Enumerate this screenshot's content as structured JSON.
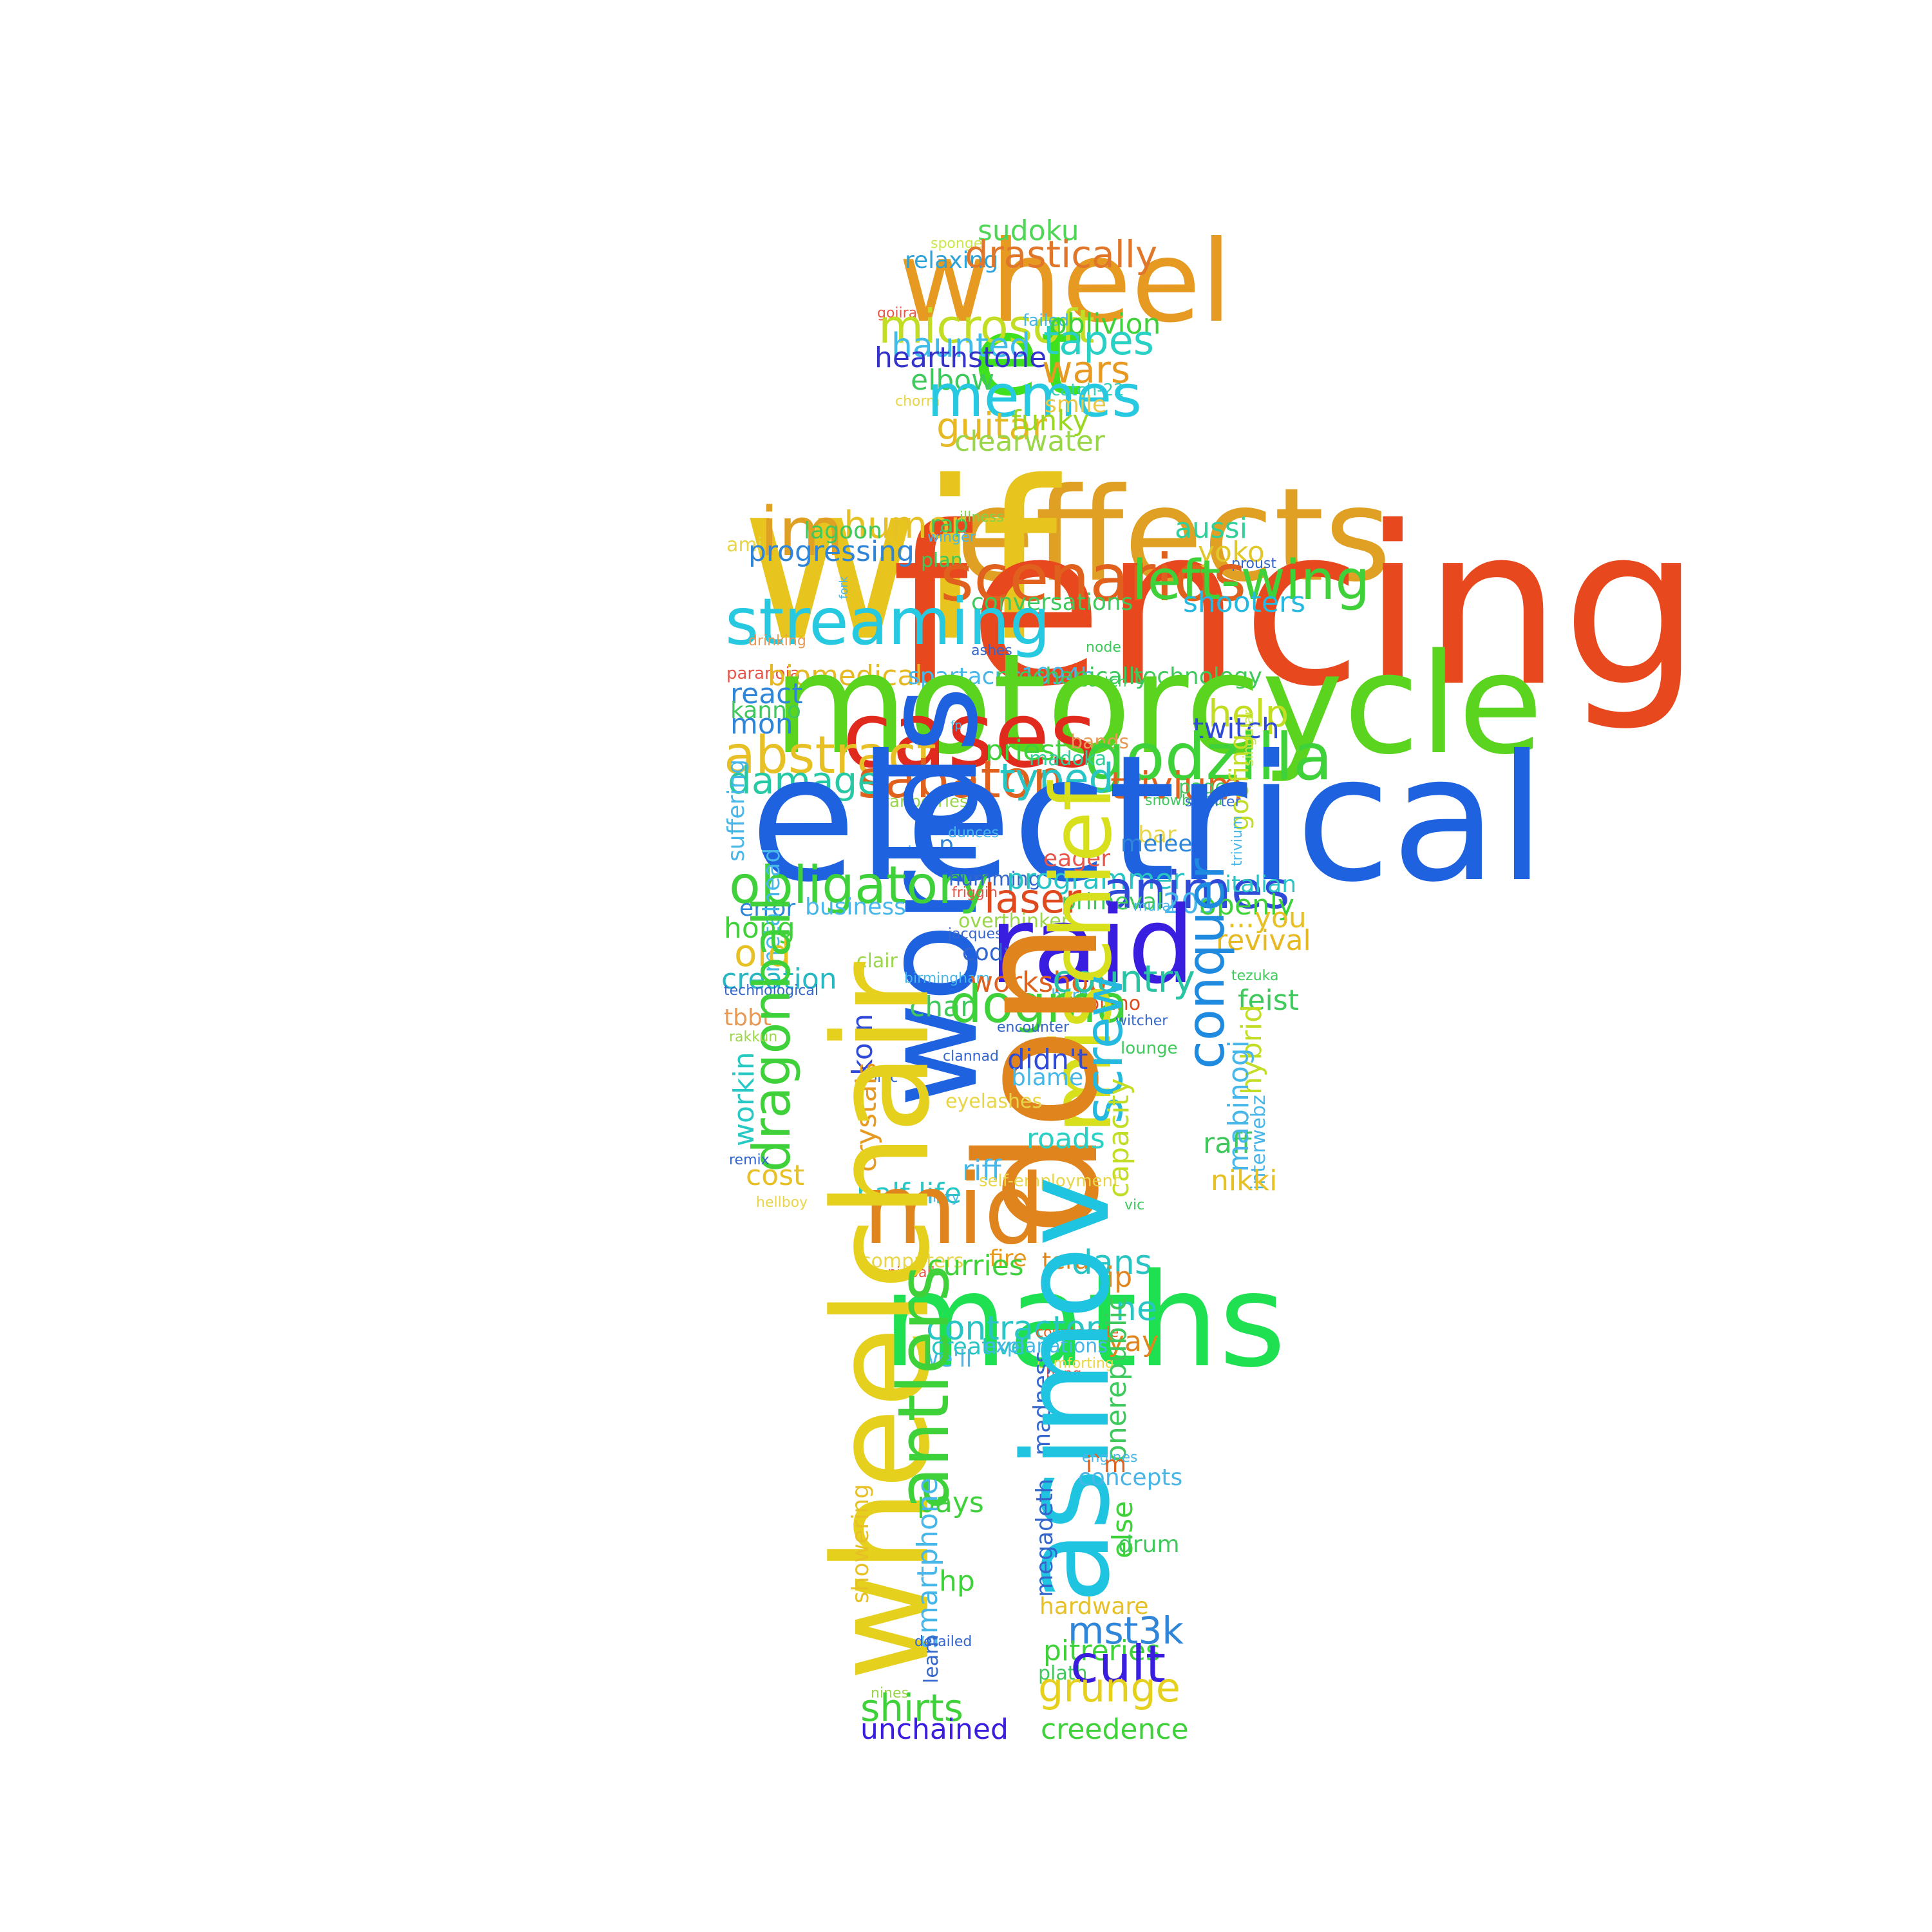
{
  "words": [
    {
      "text": "wheel",
      "color": "#e69a21"
    },
    {
      "text": "et",
      "color": "#3fe01d"
    },
    {
      "text": "sudoku",
      "color": "#4fd656"
    },
    {
      "text": "sponge",
      "color": "#c9e84a"
    },
    {
      "text": "relaxing",
      "color": "#2fa3d8"
    },
    {
      "text": "drastically",
      "color": "#e0762a"
    },
    {
      "text": "gojira",
      "color": "#e8554a"
    },
    {
      "text": "microsoft",
      "color": "#c3dd24"
    },
    {
      "text": "failed",
      "color": "#47b6e8"
    },
    {
      "text": "oblivion",
      "color": "#3fd13a"
    },
    {
      "text": "haunted",
      "color": "#3fbde8"
    },
    {
      "text": "tapes",
      "color": "#29d1c4"
    },
    {
      "text": "hearthstone",
      "color": "#3333cc"
    },
    {
      "text": "wars",
      "color": "#e69a21"
    },
    {
      "text": "elbow",
      "color": "#3ec95c"
    },
    {
      "text": "catch-22",
      "color": "#33cfb8"
    },
    {
      "text": "chorm",
      "color": "#e8d54a"
    },
    {
      "text": "memes",
      "color": "#26c9e0"
    },
    {
      "text": "smile",
      "color": "#e8c84a"
    },
    {
      "text": "guitar",
      "color": "#e6b822"
    },
    {
      "text": "funky",
      "color": "#9ad622"
    },
    {
      "text": "clearwater",
      "color": "#9ad64a"
    },
    {
      "text": "effects",
      "color": "#e0a024"
    },
    {
      "text": "wif",
      "color": "#e8c41e"
    },
    {
      "text": "fencing",
      "color": "#e8481e"
    },
    {
      "text": "im",
      "color": "#e0a024"
    },
    {
      "text": "humor",
      "color": "#e6c024"
    },
    {
      "text": "lagoon",
      "color": "#3fc95c"
    },
    {
      "text": "rap",
      "color": "#3fc95c"
    },
    {
      "text": "illness",
      "color": "#7ed64a"
    },
    {
      "text": "aussi",
      "color": "#33cf9a"
    },
    {
      "text": "ami",
      "color": "#e8d54a"
    },
    {
      "text": "progressing",
      "color": "#2f86d8"
    },
    {
      "text": "wingèr",
      "color": "#47b6e8"
    },
    {
      "text": "plan",
      "color": "#3fc95c"
    },
    {
      "text": "yoko",
      "color": "#e0c82a"
    },
    {
      "text": "proust",
      "color": "#3366cc"
    },
    {
      "text": "scenarios",
      "color": "#e0601e"
    },
    {
      "text": "left-wing",
      "color": "#3fd13a"
    },
    {
      "text": "conversations",
      "color": "#3fc95c"
    },
    {
      "text": "shooters",
      "color": "#26b9e0"
    },
    {
      "text": "streaming",
      "color": "#26c9e0"
    },
    {
      "text": "drinking",
      "color": "#e69a55"
    },
    {
      "text": "ashes",
      "color": "#3366cc"
    },
    {
      "text": "node",
      "color": "#3fc95c"
    },
    {
      "text": "paranoia",
      "color": "#e8554a"
    },
    {
      "text": "biomedical",
      "color": "#e6b822"
    },
    {
      "text": "spartacus1994b",
      "color": "#47b6e8"
    },
    {
      "text": "mechanically",
      "color": "#3fc95c"
    },
    {
      "text": "scotch",
      "color": "#3fc95c"
    },
    {
      "text": "technology",
      "color": "#3fc95c"
    },
    {
      "text": "motorcycle",
      "color": "#5ad41e"
    },
    {
      "text": "react",
      "color": "#2f86d8"
    },
    {
      "text": "kanno",
      "color": "#3fc95c"
    },
    {
      "text": "mon",
      "color": "#2f86d8"
    },
    {
      "text": "help",
      "color": "#c3dd24"
    },
    {
      "text": "twitch",
      "color": "#2f4ad8"
    },
    {
      "text": "cases",
      "color": "#e02a1e"
    },
    {
      "text": "abstract",
      "color": "#e6c024"
    },
    {
      "text": "priest",
      "color": "#3fd13a"
    },
    {
      "text": "bands",
      "color": "#e69a55"
    },
    {
      "text": "godzilla",
      "color": "#3fd13a"
    },
    {
      "text": "madoka",
      "color": "#33cf9a"
    },
    {
      "text": "singular",
      "color": "#c9e84a"
    },
    {
      "text": "sabaton",
      "color": "#e0601e"
    },
    {
      "text": "typed",
      "color": "#29c4c4"
    },
    {
      "text": "damage",
      "color": "#26c9a4"
    },
    {
      "text": "trivium",
      "color": "#e0601e"
    },
    {
      "text": "pages",
      "color": "#3fc95c"
    },
    {
      "text": "goofing",
      "color": "#c3dd24"
    },
    {
      "text": "cranberries",
      "color": "#9ad64a"
    },
    {
      "text": "snowboard",
      "color": "#3fc95c"
    },
    {
      "text": "smarter",
      "color": "#3366cc"
    },
    {
      "text": "electrical",
      "color": "#1e62e0"
    },
    {
      "text": "suffering",
      "color": "#47b6e8"
    },
    {
      "text": "dunces",
      "color": "#47b6e8"
    },
    {
      "text": "bar",
      "color": "#e8d54a"
    },
    {
      "text": "p",
      "color": "#2f86d8"
    },
    {
      "text": "melee",
      "color": "#2f86d8"
    },
    {
      "text": "rien",
      "color": "#47b6e8"
    },
    {
      "text": "eager",
      "color": "#e8554a"
    },
    {
      "text": "trivium",
      "color": "#47b6e8"
    },
    {
      "text": "worlds",
      "color": "#1e62e0"
    },
    {
      "text": "obligatory",
      "color": "#3fd13a"
    },
    {
      "text": "humming",
      "color": "#3366cc"
    },
    {
      "text": "programmer",
      "color": "#29c4c4"
    },
    {
      "text": "animes",
      "color": "#2f4ad8"
    },
    {
      "text": "friggin",
      "color": "#e8554a"
    },
    {
      "text": "italian",
      "color": "#29c4c4"
    },
    {
      "text": "laser",
      "color": "#e0481e"
    },
    {
      "text": "primeval",
      "color": "#3fc95c"
    },
    {
      "text": "mural",
      "color": "#47b6e8"
    },
    {
      "text": "20s",
      "color": "#47b6e8"
    },
    {
      "text": "openly",
      "color": "#3fd13a"
    },
    {
      "text": "error",
      "color": "#2f86d8"
    },
    {
      "text": "business",
      "color": "#47b6e8"
    },
    {
      "text": "overthinker",
      "color": "#9ad64a"
    },
    {
      "text": "...you",
      "color": "#e6c024"
    },
    {
      "text": "hong",
      "color": "#3fd13a"
    },
    {
      "text": "jacques",
      "color": "#3366cc"
    },
    {
      "text": "raid",
      "color": "#3a1ee0"
    },
    {
      "text": "revival",
      "color": "#e6b822"
    },
    {
      "text": "metalhead",
      "color": "#47b6e8"
    },
    {
      "text": "old",
      "color": "#e6c024"
    },
    {
      "text": "clair",
      "color": "#9ad64a"
    },
    {
      "text": "cody",
      "color": "#3366cc"
    },
    {
      "text": "conquer",
      "color": "#1e8ae0"
    },
    {
      "text": "creation",
      "color": "#26b9c4"
    },
    {
      "text": "birmingham",
      "color": "#47b6e8"
    },
    {
      "text": "workshop",
      "color": "#e0601e"
    },
    {
      "text": "country",
      "color": "#29c4a4"
    },
    {
      "text": "technological",
      "color": "#3366cc"
    },
    {
      "text": "born",
      "color": "#47b6e8"
    },
    {
      "text": "tezuka",
      "color": "#3fc95c"
    },
    {
      "text": "feist",
      "color": "#3fc95c"
    },
    {
      "text": "piano",
      "color": "#e0481e"
    },
    {
      "text": "tbbt",
      "color": "#e69a55"
    },
    {
      "text": "chan",
      "color": "#3fc95c"
    },
    {
      "text": "dogma",
      "color": "#3fd13a"
    },
    {
      "text": "witcher",
      "color": "#3366cc"
    },
    {
      "text": "encounter",
      "color": "#3366cc"
    },
    {
      "text": "dragonball",
      "color": "#3fd13a"
    },
    {
      "text": "mischief",
      "color": "#d8e01e"
    },
    {
      "text": "rakkun",
      "color": "#9ad64a"
    },
    {
      "text": "korn",
      "color": "#2f4ad8"
    },
    {
      "text": "clannad",
      "color": "#3366cc"
    },
    {
      "text": "lounge",
      "color": "#3fc95c"
    },
    {
      "text": "don",
      "color": "#e0841e"
    },
    {
      "text": "didn't",
      "color": "#2f4ad8"
    },
    {
      "text": "ironic",
      "color": "#3366cc"
    },
    {
      "text": "blame",
      "color": "#47b6e8"
    },
    {
      "text": "hybrid",
      "color": "#c3dd24"
    },
    {
      "text": "screw",
      "color": "#26b9e0"
    },
    {
      "text": "eyelashes",
      "color": "#e8d54a"
    },
    {
      "text": "workin",
      "color": "#26c9c4"
    },
    {
      "text": "crystals",
      "color": "#e69a21"
    },
    {
      "text": "roads",
      "color": "#29d1c4"
    },
    {
      "text": "raff",
      "color": "#3fc95c"
    },
    {
      "text": "remix",
      "color": "#3366cc"
    },
    {
      "text": "mabinogi",
      "color": "#47b6e8"
    },
    {
      "text": "interwebz",
      "color": "#47b6e8"
    },
    {
      "text": "riff",
      "color": "#47b6e8"
    },
    {
      "text": "cost",
      "color": "#e6c024"
    },
    {
      "text": "self-employment",
      "color": "#e8d54a"
    },
    {
      "text": "capacity",
      "color": "#c3dd24"
    },
    {
      "text": "nikki",
      "color": "#e6c024"
    },
    {
      "text": "hellboy",
      "color": "#e8d54a"
    },
    {
      "text": "half-life",
      "color": "#29c4c4"
    },
    {
      "text": "lizzy",
      "color": "#47b6e8"
    },
    {
      "text": "mid",
      "color": "#e0841e"
    },
    {
      "text": "vic",
      "color": "#3fc95c"
    },
    {
      "text": "computers",
      "color": "#e8d54a"
    },
    {
      "text": "fire",
      "color": "#e69a21"
    },
    {
      "text": "tera",
      "color": "#e0841e"
    },
    {
      "text": "dans",
      "color": "#29c4c4"
    },
    {
      "text": "pinball",
      "color": "#e8554a"
    },
    {
      "text": "curries",
      "color": "#3fd13a"
    },
    {
      "text": "ip",
      "color": "#e0841e"
    },
    {
      "text": "maths",
      "color": "#1ee051"
    },
    {
      "text": "ne",
      "color": "#29c4c4"
    },
    {
      "text": "contractor",
      "color": "#29c4c4"
    },
    {
      "text": "countryside",
      "color": "#e0601e"
    },
    {
      "text": "yay",
      "color": "#e0841e"
    },
    {
      "text": "creative",
      "color": "#29c4c4"
    },
    {
      "text": "explanations",
      "color": "#47b6e8"
    },
    {
      "text": "we'll",
      "color": "#47b6e8"
    },
    {
      "text": "comforting",
      "color": "#e8d54a"
    },
    {
      "text": "wheelchair",
      "color": "#e6d01e"
    },
    {
      "text": "bong",
      "color": "#e8554a"
    },
    {
      "text": "onerepublic",
      "color": "#3fc95c"
    },
    {
      "text": "antlers",
      "color": "#3fd13a"
    },
    {
      "text": "madness",
      "color": "#3366cc"
    },
    {
      "text": "asimov",
      "color": "#1ec4e0"
    },
    {
      "text": "engines",
      "color": "#47b6e8"
    },
    {
      "text": "i`m",
      "color": "#e0601e"
    },
    {
      "text": "concepts",
      "color": "#47b6e8"
    },
    {
      "text": "pays",
      "color": "#3fd13a"
    },
    {
      "text": "else",
      "color": "#3fd13a"
    },
    {
      "text": "megadeth",
      "color": "#3366cc"
    },
    {
      "text": "drum",
      "color": "#3fc95c"
    },
    {
      "text": "showering",
      "color": "#e6c024"
    },
    {
      "text": "smartphone",
      "color": "#47b6e8"
    },
    {
      "text": "hp",
      "color": "#3fd13a"
    },
    {
      "text": "hardware",
      "color": "#e6c024"
    },
    {
      "text": "detailed",
      "color": "#3366cc"
    },
    {
      "text": "mst3k",
      "color": "#2f86d8"
    },
    {
      "text": "pitreries",
      "color": "#3fd13a"
    },
    {
      "text": "learn",
      "color": "#3366cc"
    },
    {
      "text": "plath",
      "color": "#3fc95c"
    },
    {
      "text": "cult",
      "color": "#3a1ee0"
    },
    {
      "text": "nines",
      "color": "#9ad64a"
    },
    {
      "text": "grunge",
      "color": "#e6d01e"
    },
    {
      "text": "shirts",
      "color": "#3fd13a"
    },
    {
      "text": "unchained",
      "color": "#3a1ee0"
    },
    {
      "text": "creedence",
      "color": "#3fd13a"
    },
    {
      "text": "fork",
      "color": "#47b6e8"
    },
    {
      "text": "fp",
      "color": "#47b6e8"
    }
  ]
}
